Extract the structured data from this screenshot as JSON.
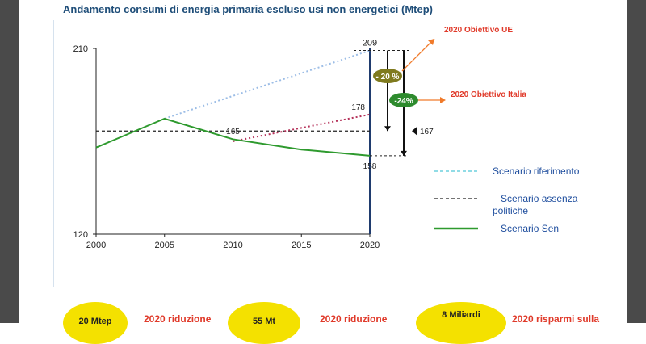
{
  "title": "Andamento consumi di energia primaria escluso usi non energetici (Mtep)",
  "chart_data": {
    "type": "line",
    "title": "Andamento consumi di energia primaria escluso usi non energetici (Mtep)",
    "x_ticks": [
      "2000",
      "2005",
      "2010",
      "2015",
      "2020"
    ],
    "y_ticks": [
      "210",
      "120"
    ],
    "xlim": [
      2000,
      2020
    ],
    "ylim": [
      120,
      210
    ],
    "grid": false,
    "legend_position": "right",
    "series": [
      {
        "name": "Scenario riferimento",
        "style": "dotted",
        "color": "#9cbde6",
        "points": [
          [
            2005,
            176
          ],
          [
            2020,
            209
          ]
        ]
      },
      {
        "name": "Scenario assenza politiche",
        "style": "dashed",
        "color": "#222222",
        "points": [
          [
            2000,
            170
          ],
          [
            2020,
            170
          ]
        ]
      },
      {
        "name": "",
        "style": "dotted",
        "color": "#b5325a",
        "points": [
          [
            2010,
            165
          ],
          [
            2020,
            178
          ]
        ]
      },
      {
        "name": "Scenario Sen",
        "style": "solid",
        "color": "#2e9a2e",
        "points": [
          [
            2000,
            162
          ],
          [
            2005,
            176
          ],
          [
            2010,
            166
          ],
          [
            2015,
            161
          ],
          [
            2020,
            158
          ]
        ]
      }
    ],
    "annotations": {
      "v209": "209",
      "v178": "178",
      "v165": "165",
      "v167": "167",
      "v158": "158",
      "minus20": "- 20 %",
      "minus24": "-24%",
      "obiettivo_ue": "2020 Obiettivo UE",
      "obiettivo_italia": "2020 Obiettivo Italia"
    },
    "colors": {
      "minus20_badge": "#7f7a1e",
      "minus24_badge": "#2e8b2e",
      "ue_arrow": "#f07a2a",
      "italia_arrow": "#f07a2a",
      "axis": "#222222",
      "vertical_2020": "#1f3b6e"
    }
  },
  "legend": {
    "riferimento": "Scenario riferimento",
    "assenza_line1": "Scenario assenza",
    "assenza_line2": "politiche",
    "sen": "Scenario Sen"
  },
  "bottom": {
    "e1": "20 Mtep",
    "t1": "2020 riduzione",
    "e2": "55 Mt",
    "t2": "2020 riduzione",
    "e3": "8  Miliardi",
    "t3": "2020 risparmi sulla"
  }
}
